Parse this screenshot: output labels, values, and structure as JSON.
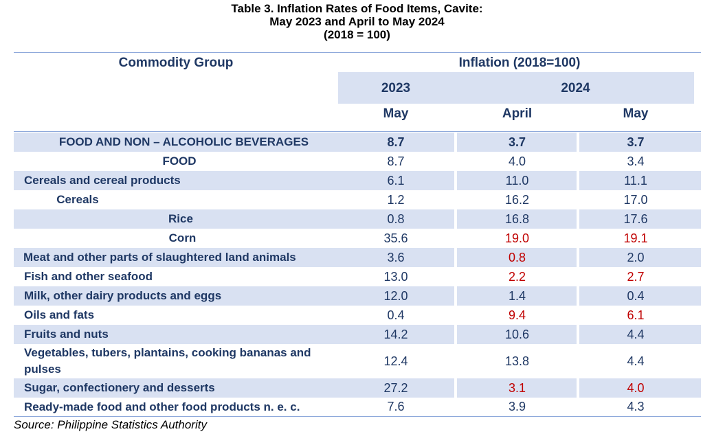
{
  "title": {
    "line1": "Table 3.  Inflation Rates of Food Items, Cavite:",
    "line2": "May 2023 and April to May 2024",
    "line3": "(2018 = 100)"
  },
  "header": {
    "commodity_group": "Commodity Group",
    "inflation": "Inflation (2018=100)",
    "year_2023": "2023",
    "year_2024": "2024",
    "col1": "May",
    "col2": "April",
    "col3": "May"
  },
  "rows": [
    {
      "label": "FOOD AND NON – ALCOHOLIC BEVERAGES",
      "v1": "8.7",
      "v2": "3.7",
      "v3": "3.7",
      "bold": true
    },
    {
      "label": "FOOD",
      "v1": "8.7",
      "v2": "4.0",
      "v3": "3.4"
    },
    {
      "label": "Cereals and cereal products",
      "v1": "6.1",
      "v2": "11.0",
      "v3": "11.1"
    },
    {
      "label": "Cereals",
      "v1": "1.2",
      "v2": "16.2",
      "v3": "17.0"
    },
    {
      "label": "Rice",
      "v1": "0.8",
      "v2": "16.8",
      "v3": "17.6"
    },
    {
      "label": "Corn",
      "v1": "35.6",
      "v2": "19.0",
      "v3": "19.1",
      "red2": true,
      "red3": true
    },
    {
      "label": "Meat and other parts of slaughtered land animals",
      "v1": "3.6",
      "v2": "0.8",
      "v3": "2.0",
      "red2": true
    },
    {
      "label": "Fish and other seafood",
      "v1": "13.0",
      "v2": "2.2",
      "v3": "2.7",
      "red2": true,
      "red3": true
    },
    {
      "label": "Milk, other dairy products and eggs",
      "v1": "12.0",
      "v2": "1.4",
      "v3": "0.4"
    },
    {
      "label": "Oils and fats",
      "v1": "0.4",
      "v2": "9.4",
      "v3": "6.1",
      "red2": true,
      "red3": true
    },
    {
      "label": "Fruits and nuts",
      "v1": "14.2",
      "v2": "10.6",
      "v3": "4.4"
    },
    {
      "label": "Vegetables, tubers, plantains, cooking bananas and pulses",
      "v1": "12.4",
      "v2": "13.8",
      "v3": "4.4"
    },
    {
      "label": "Sugar, confectionery and desserts",
      "v1": "27.2",
      "v2": "3.1",
      "v3": "4.0",
      "red2": true,
      "red3": true
    },
    {
      "label": "Ready-made food and other food products n. e. c.",
      "v1": "7.6",
      "v2": "3.9",
      "v3": "4.3"
    }
  ],
  "source": "Source: Philippine Statistics Authority",
  "colors": {
    "text": "#1f3864",
    "shade": "#d9e1f2",
    "highlight": "#c00000",
    "rule": "#8ea9db"
  }
}
